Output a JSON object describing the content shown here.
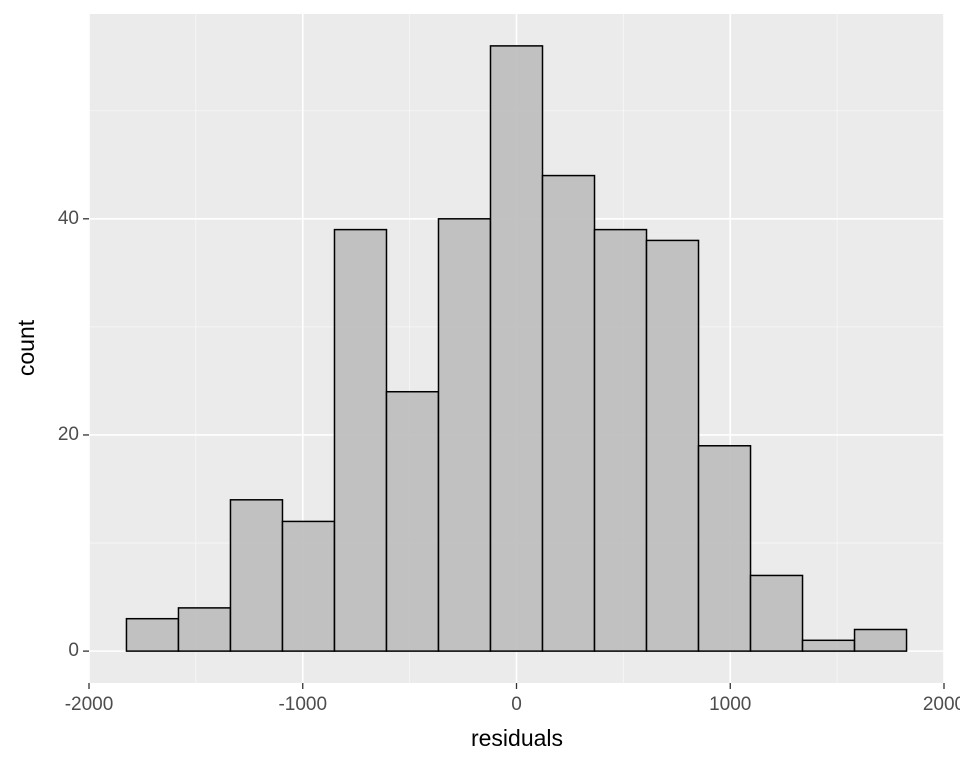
{
  "chart_data": {
    "type": "histogram",
    "x_label": "residuals",
    "y_label": "count",
    "bins": [
      -1824.75,
      -1581.45,
      -1338.15,
      -1094.85,
      -851.55,
      -608.25,
      -364.95,
      -121.65,
      121.65,
      364.95,
      608.25,
      851.55,
      1094.85,
      1338.15,
      1581.45,
      1824.75
    ],
    "values": [
      3,
      4,
      14,
      12,
      39,
      24,
      40,
      56,
      44,
      39,
      38,
      19,
      7,
      1,
      2
    ],
    "color": "#bfbfbf",
    "edge_color": "#000000",
    "xlim": [
      -2000,
      2000
    ],
    "xticks": [
      -2000,
      -1000,
      0,
      1000,
      2000
    ],
    "ylim": [
      -2.95,
      58.95
    ],
    "yticks": [
      0,
      20,
      40
    ],
    "x_minor_grid": [
      -1500,
      -500,
      500,
      1500
    ],
    "y_minor_grid": [
      10,
      30,
      50
    ],
    "grid": true
  }
}
